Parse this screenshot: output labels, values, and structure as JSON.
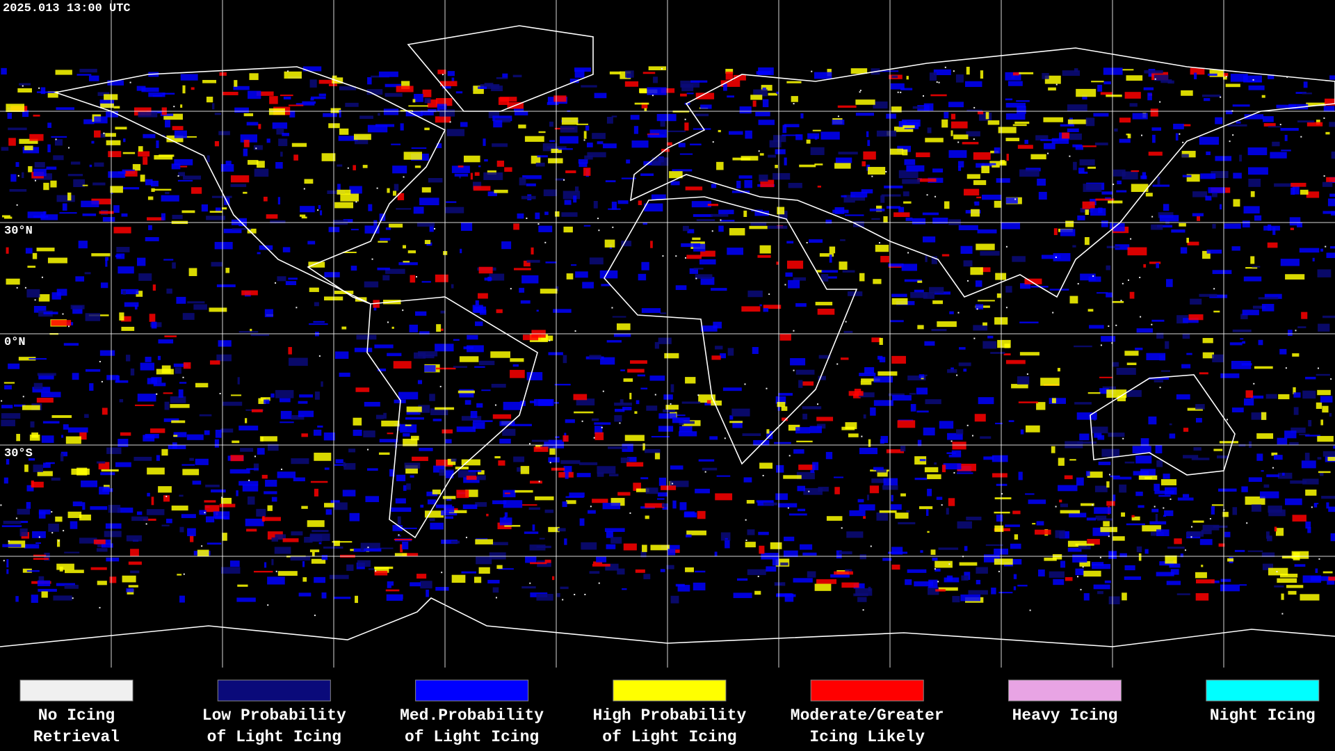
{
  "timestamp": "2025.013 13:00 UTC",
  "latitude_labels": [
    "30°N",
    "0°N",
    "30°S"
  ],
  "legend": [
    {
      "lines": [
        "No Icing",
        "Retrieval"
      ],
      "color": "#f0f0f0"
    },
    {
      "lines": [
        "Low Probability",
        "of Light Icing"
      ],
      "color": "#0a0a7a"
    },
    {
      "lines": [
        "Med.Probability",
        "of Light Icing"
      ],
      "color": "#0000ff"
    },
    {
      "lines": [
        "High Probability",
        "of Light Icing"
      ],
      "color": "#ffff00"
    },
    {
      "lines": [
        "Moderate/Greater",
        "Icing Likely"
      ],
      "color": "#ff0000"
    },
    {
      "lines": [
        "Heavy Icing"
      ],
      "color": "#e8a4e4"
    },
    {
      "lines": [
        "Night Icing"
      ],
      "color": "#00ffff"
    }
  ]
}
